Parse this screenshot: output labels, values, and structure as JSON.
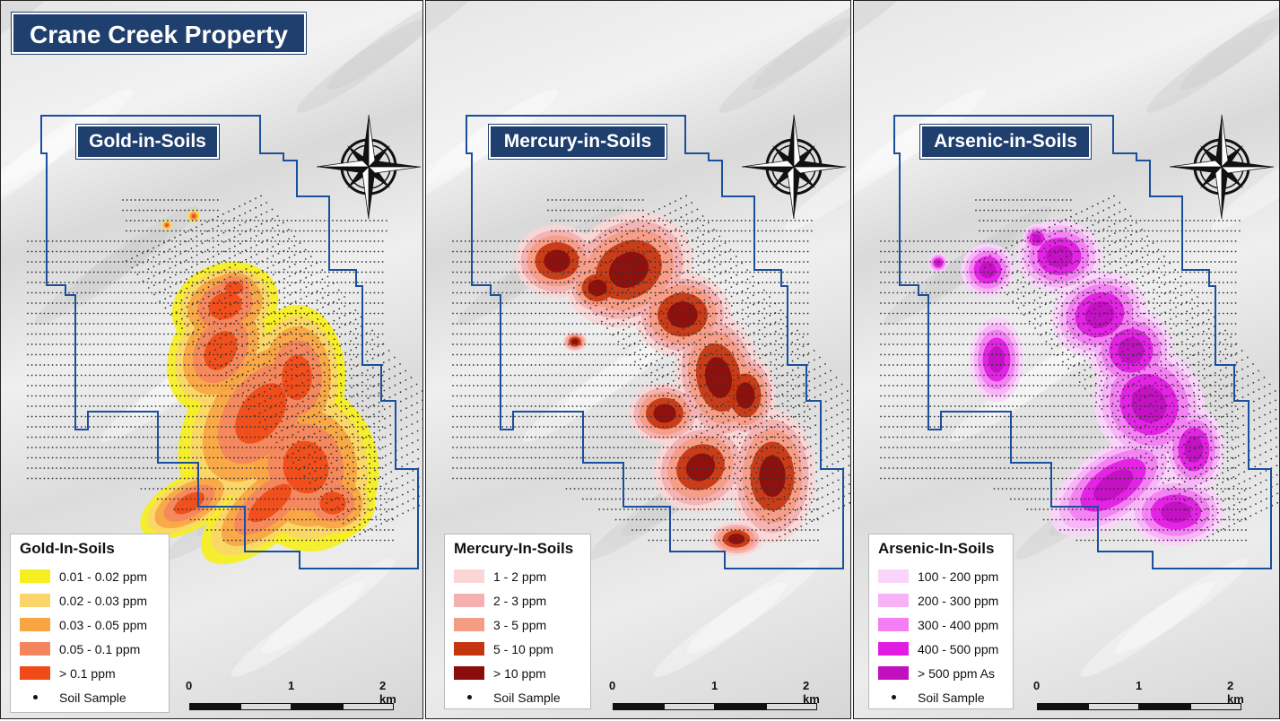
{
  "main_title": "Crane Creek Property",
  "scale": {
    "l0": "0",
    "l1": "1",
    "l2": "2 km"
  },
  "colors": {
    "boundary": "#1a4f9c",
    "title_bg": "#1f3f6e",
    "sample": "#333333"
  },
  "icons": {
    "compass": "compass-rose-icon"
  },
  "panels": [
    {
      "title": "Gold-in-Soils",
      "legend_title": "Gold-In-Soils",
      "classes": [
        {
          "label": "0.01 - 0.02 ppm",
          "color": "#f6ef1f"
        },
        {
          "label": "0.02 - 0.03 ppm",
          "color": "#fad66a"
        },
        {
          "label": "0.03 - 0.05 ppm",
          "color": "#f9a544"
        },
        {
          "label": "0.05 - 0.1 ppm",
          "color": "#f4855e"
        },
        {
          "label": "> 0.1 ppm",
          "color": "#f04a16"
        }
      ],
      "sample_label": "Soil Sample"
    },
    {
      "title": "Mercury-in-Soils",
      "legend_title": "Mercury-In-Soils",
      "classes": [
        {
          "label": "1 - 2 ppm",
          "color": "#fad6d6"
        },
        {
          "label": "2 - 3 ppm",
          "color": "#f5b0b0"
        },
        {
          "label": "3 - 5 ppm",
          "color": "#f59c84"
        },
        {
          "label": "5 - 10 ppm",
          "color": "#c4360f"
        },
        {
          "label": "> 10 ppm",
          "color": "#8b0c0c"
        }
      ],
      "sample_label": "Soil Sample"
    },
    {
      "title": "Arsenic-in-Soils",
      "legend_title": "Arsenic-In-Soils",
      "classes": [
        {
          "label": "100 - 200 ppm",
          "color": "#fbd4fb"
        },
        {
          "label": "200 - 300 ppm",
          "color": "#f7b2f7"
        },
        {
          "label": "300 - 400 ppm",
          "color": "#f47ef4"
        },
        {
          "label": "400 - 500 ppm",
          "color": "#e21ce2"
        },
        {
          "label": "> 500 ppm As",
          "color": "#c010c0"
        }
      ],
      "sample_label": "Soil Sample"
    }
  ]
}
